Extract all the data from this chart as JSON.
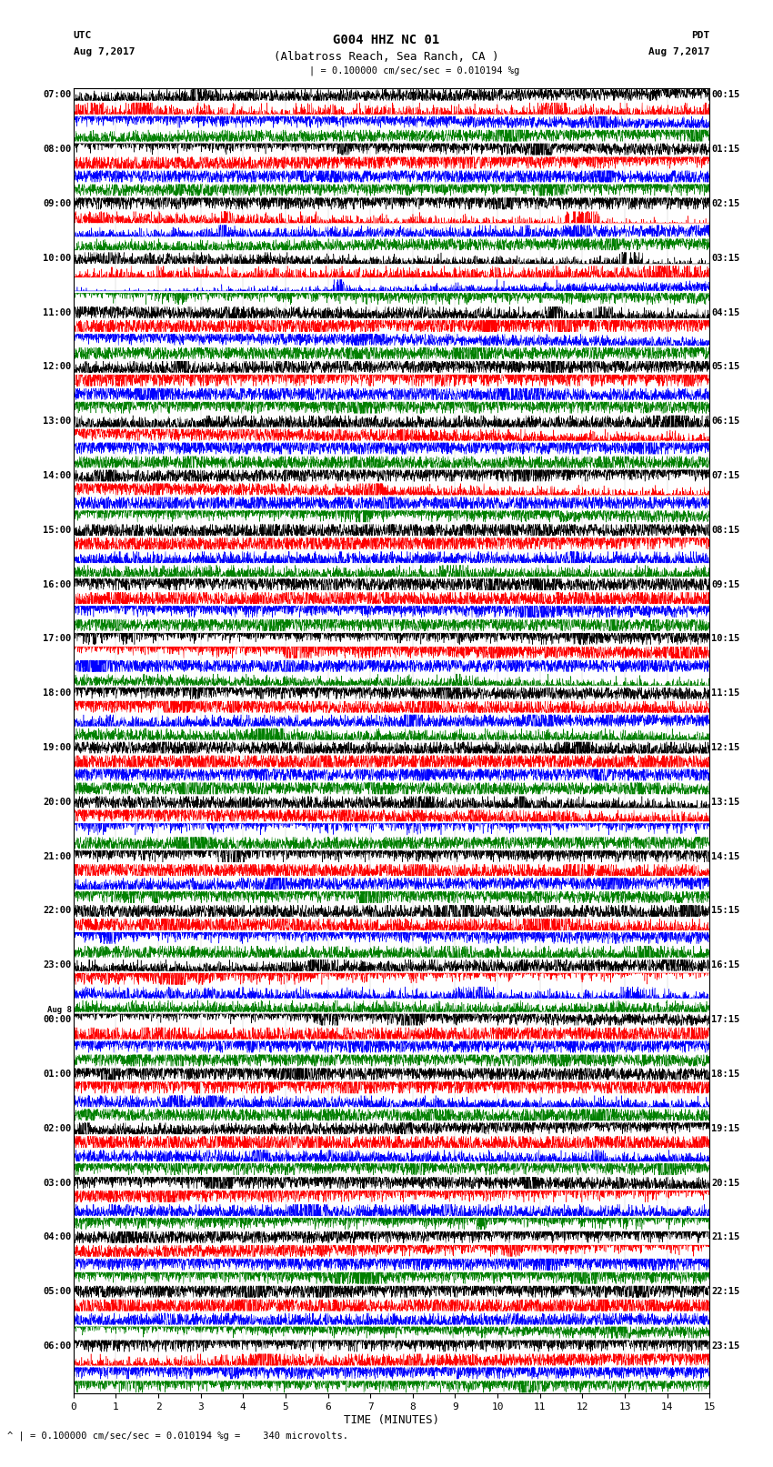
{
  "title_line1": "G004 HHZ NC 01",
  "title_line2": "(Albatross Reach, Sea Ranch, CA )",
  "utc_label": "UTC",
  "utc_date": "Aug 7,2017",
  "pdt_label": "PDT",
  "pdt_date": "Aug 7,2017",
  "scale_text": "| = 0.100000 cm/sec/sec = 0.010194 %g",
  "bottom_text": "^ | = 0.100000 cm/sec/sec = 0.010194 %g =    340 microvolts.",
  "xlabel": "TIME (MINUTES)",
  "xmin": 0,
  "xmax": 15,
  "xticks": [
    0,
    1,
    2,
    3,
    4,
    5,
    6,
    7,
    8,
    9,
    10,
    11,
    12,
    13,
    14,
    15
  ],
  "num_rows": 96,
  "row_colors": [
    "black",
    "red",
    "blue",
    "green"
  ],
  "background_color": "#ffffff",
  "left_times": [
    "07:00",
    "",
    "",
    "",
    "08:00",
    "",
    "",
    "",
    "09:00",
    "",
    "",
    "",
    "10:00",
    "",
    "",
    "",
    "11:00",
    "",
    "",
    "",
    "12:00",
    "",
    "",
    "",
    "13:00",
    "",
    "",
    "",
    "14:00",
    "",
    "",
    "",
    "15:00",
    "",
    "",
    "",
    "16:00",
    "",
    "",
    "",
    "17:00",
    "",
    "",
    "",
    "18:00",
    "",
    "",
    "",
    "19:00",
    "",
    "",
    "",
    "20:00",
    "",
    "",
    "",
    "21:00",
    "",
    "",
    "",
    "22:00",
    "",
    "",
    "",
    "23:00",
    "",
    "",
    "",
    "Aug 8\n00:00",
    "",
    "",
    "",
    "01:00",
    "",
    "",
    "",
    "02:00",
    "",
    "",
    "",
    "03:00",
    "",
    "",
    "",
    "04:00",
    "",
    "",
    "",
    "05:00",
    "",
    "",
    "",
    "06:00",
    "",
    "",
    ""
  ],
  "right_times": [
    "00:15",
    "",
    "",
    "",
    "01:15",
    "",
    "",
    "",
    "02:15",
    "",
    "",
    "",
    "03:15",
    "",
    "",
    "",
    "04:15",
    "",
    "",
    "",
    "05:15",
    "",
    "",
    "",
    "06:15",
    "",
    "",
    "",
    "07:15",
    "",
    "",
    "",
    "08:15",
    "",
    "",
    "",
    "09:15",
    "",
    "",
    "",
    "10:15",
    "",
    "",
    "",
    "11:15",
    "",
    "",
    "",
    "12:15",
    "",
    "",
    "",
    "13:15",
    "",
    "",
    "",
    "14:15",
    "",
    "",
    "",
    "15:15",
    "",
    "",
    "",
    "16:15",
    "",
    "",
    "",
    "17:15",
    "",
    "",
    "",
    "18:15",
    "",
    "",
    "",
    "19:15",
    "",
    "",
    "",
    "20:15",
    "",
    "",
    "",
    "21:15",
    "",
    "",
    "",
    "22:15",
    "",
    "",
    "",
    "23:15",
    "",
    "",
    ""
  ]
}
